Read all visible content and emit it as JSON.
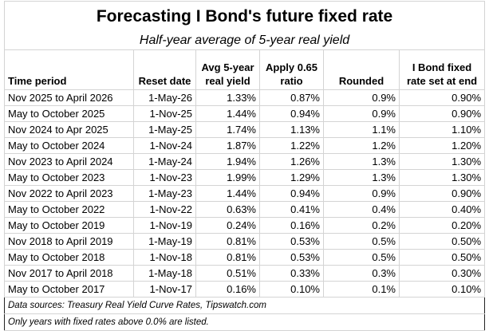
{
  "header": {
    "title": "Forecasting I Bond's future fixed rate",
    "subtitle": "Half-year average of 5-year real yield"
  },
  "table": {
    "columns": [
      [
        "Time period"
      ],
      [
        "Reset date"
      ],
      [
        "Avg 5-year",
        "real yield"
      ],
      [
        "Apply 0.65",
        "ratio"
      ],
      [
        "Rounded"
      ],
      [
        "I Bond fixed",
        "rate set at end"
      ]
    ],
    "rows": [
      [
        "Nov 2025 to April 2026",
        "1-May-26",
        "1.33%",
        "0.87%",
        "0.9%",
        "0.90%"
      ],
      [
        "May to October 2025",
        "1-Nov-25",
        "1.44%",
        "0.94%",
        "0.9%",
        "0.90%"
      ],
      [
        "Nov 2024 to Apr 2025",
        "1-May-25",
        "1.74%",
        "1.13%",
        "1.1%",
        "1.10%"
      ],
      [
        "May to October 2024",
        "1-Nov-24",
        "1.87%",
        "1.22%",
        "1.2%",
        "1.20%"
      ],
      [
        "Nov 2023 to April 2024",
        "1-May-24",
        "1.94%",
        "1.26%",
        "1.3%",
        "1.30%"
      ],
      [
        "May to October 2023",
        "1-Nov-23",
        "1.99%",
        "1.29%",
        "1.3%",
        "1.30%"
      ],
      [
        "Nov 2022 to April 2023",
        "1-May-23",
        "1.44%",
        "0.94%",
        "0.9%",
        "0.90%"
      ],
      [
        "May to October 2022",
        "1-Nov-22",
        "0.63%",
        "0.41%",
        "0.4%",
        "0.40%"
      ],
      [
        "May to October 2019",
        "1-Nov-19",
        "0.24%",
        "0.16%",
        "0.2%",
        "0.20%"
      ],
      [
        "Nov 2018 to April 2019",
        "1-May-19",
        "0.81%",
        "0.53%",
        "0.5%",
        "0.50%"
      ],
      [
        "May to October 2018",
        "1-Nov-18",
        "0.81%",
        "0.53%",
        "0.5%",
        "0.50%"
      ],
      [
        "Nov 2017 to April 2018",
        "1-May-18",
        "0.51%",
        "0.33%",
        "0.3%",
        "0.30%"
      ],
      [
        "May to October 2017",
        "1-Nov-17",
        "0.16%",
        "0.10%",
        "0.1%",
        "0.10%"
      ]
    ]
  },
  "notes": [
    "Data sources: Treasury Real Yield Curve Rates, Tipswatch.com",
    "Only years with fixed rates above 0.0% are listed."
  ]
}
